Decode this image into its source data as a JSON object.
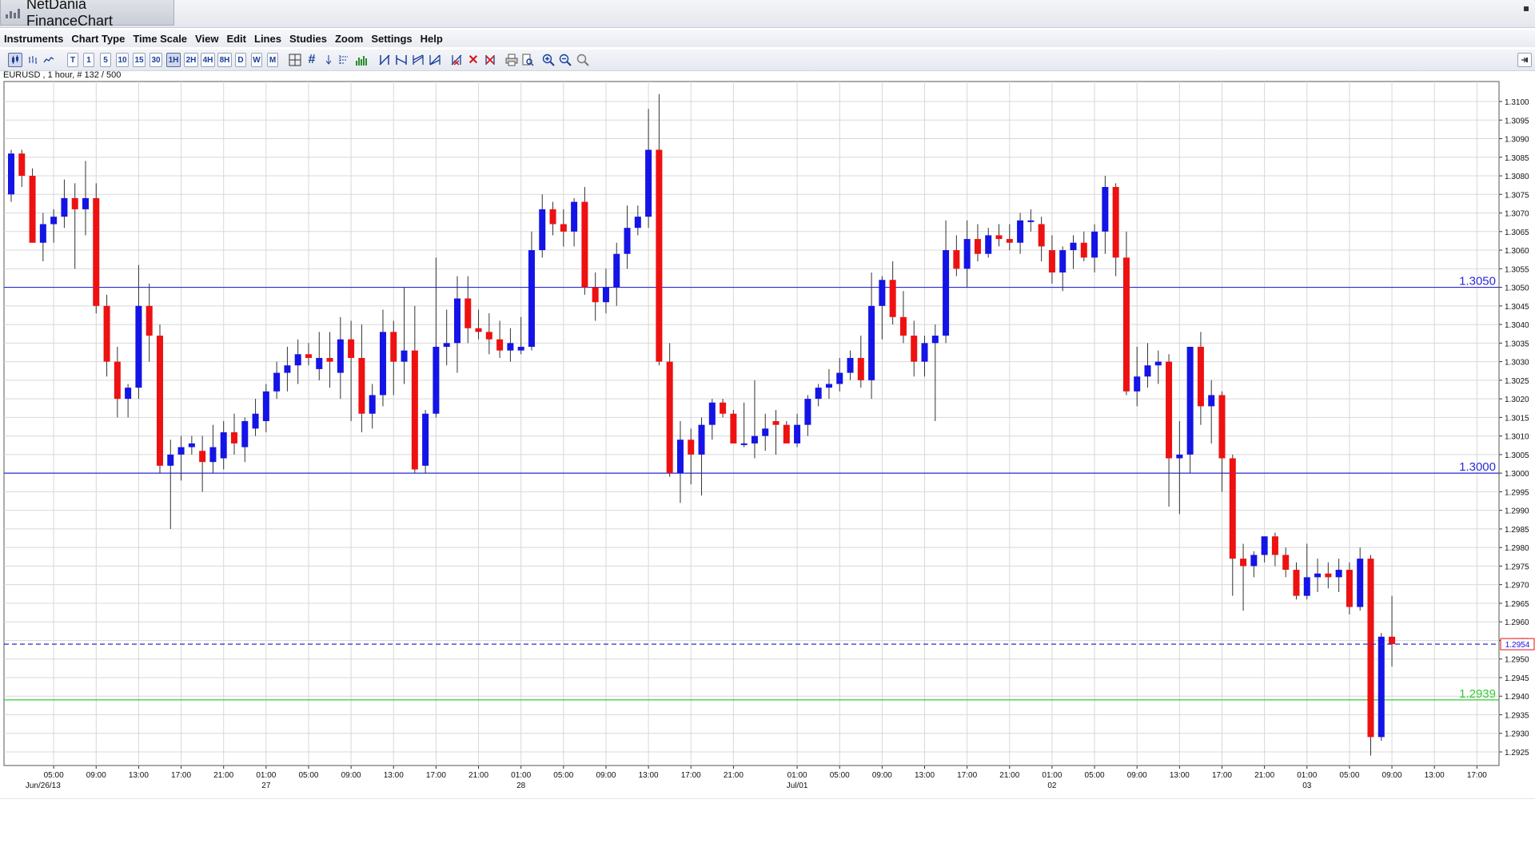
{
  "window": {
    "title": "NetDania FinanceChart"
  },
  "menu": [
    "Instruments",
    "Chart Type",
    "Time Scale",
    "View",
    "Edit",
    "Lines",
    "Studies",
    "Zoom",
    "Settings",
    "Help"
  ],
  "toolbar": {
    "timeframes": [
      "T",
      "1",
      "5",
      "10",
      "15",
      "30",
      "1H",
      "2H",
      "4H",
      "8H",
      "D",
      "W",
      "M"
    ],
    "active_timeframe": "1H",
    "icons": [
      "candlestick-chart-icon",
      "bar-chart-icon",
      "line-chart-icon",
      "crosshair-icon",
      "grid-icon",
      "arrow-down-icon",
      "fibonacci-icon",
      "volume-icon",
      "trendline-icon",
      "parallel-lines-icon",
      "channel-icon",
      "fan-icon",
      "delete-line-icon",
      "delete-icon",
      "delete-all-icon",
      "print-icon",
      "print-preview-icon",
      "zoom-in-icon",
      "zoom-out-icon",
      "zoom-reset-icon",
      "pin-icon"
    ]
  },
  "info_label": "EURUSD , 1 hour, # 132 / 500",
  "colors": {
    "up_candle": "#1414e6",
    "down_candle": "#ee1111",
    "grid": "#d8d8d8",
    "horizontal_line": "#2a2ad8",
    "support_line": "#33cc33",
    "current_price_line": "#2a2ad8",
    "current_price_box_border": "#ee1111"
  },
  "chart_data": {
    "type": "candlestick",
    "symbol": "EURUSD",
    "timeframe": "1 hour",
    "ylim": [
      1.292,
      1.3105
    ],
    "y_ticks": [
      "1.3100",
      "1.3095",
      "1.3090",
      "1.3085",
      "1.3080",
      "1.3075",
      "1.3070",
      "1.3065",
      "1.3060",
      "1.3055",
      "1.3050",
      "1.3045",
      "1.3040",
      "1.3035",
      "1.3030",
      "1.3025",
      "1.3020",
      "1.3015",
      "1.3010",
      "1.3005",
      "1.3000",
      "1.2995",
      "1.2990",
      "1.2985",
      "1.2980",
      "1.2975",
      "1.2970",
      "1.2965",
      "1.2960",
      "1.2955",
      "1.2950",
      "1.2945",
      "1.2940",
      "1.2935",
      "1.2930",
      "1.2925"
    ],
    "x_time_labels": [
      "05:00",
      "09:00",
      "13:00",
      "17:00",
      "21:00",
      "01:00",
      "05:00",
      "09:00",
      "13:00",
      "17:00",
      "21:00",
      "01:00",
      "05:00",
      "09:00",
      "13:00",
      "17:00",
      "21:00",
      "01:00",
      "05:00",
      "09:00",
      "13:00",
      "17:00",
      "21:00",
      "01:00",
      "05:00",
      "09:00",
      "13:00",
      "17:00",
      "21:00",
      "01:00",
      "05:00",
      "09:00",
      "13:00",
      "17:00"
    ],
    "x_time_bar_index": [
      4,
      8,
      12,
      16,
      20,
      24,
      28,
      32,
      36,
      40,
      44,
      48,
      52,
      56,
      60,
      64,
      68,
      74,
      78,
      82,
      86,
      90,
      94,
      98,
      102,
      106,
      110,
      114,
      118,
      122,
      126,
      130,
      134,
      138
    ],
    "x_date_labels": [
      {
        "label": "Jun/26/13",
        "bar": 3
      },
      {
        "label": "27",
        "bar": 24
      },
      {
        "label": "28",
        "bar": 48
      },
      {
        "label": "Jul/01",
        "bar": 74
      },
      {
        "label": "02",
        "bar": 98
      },
      {
        "label": "03",
        "bar": 122
      }
    ],
    "horizontal_lines": [
      {
        "value": 1.305,
        "label": "1.3050",
        "color": "#2a2ad8"
      },
      {
        "value": 1.3,
        "label": "1.3000",
        "color": "#2a2ad8"
      },
      {
        "value": 1.2939,
        "label": "1.2939",
        "color": "#33cc33"
      }
    ],
    "current_price": {
      "value": 1.2954,
      "label": "1.2954"
    },
    "candles": [
      {
        "o": 1.3075,
        "h": 1.3087,
        "l": 1.3073,
        "c": 1.3086
      },
      {
        "o": 1.3086,
        "h": 1.3087,
        "l": 1.3077,
        "c": 1.308
      },
      {
        "o": 1.308,
        "h": 1.3082,
        "l": 1.3062,
        "c": 1.3062
      },
      {
        "o": 1.3062,
        "h": 1.307,
        "l": 1.3057,
        "c": 1.3067
      },
      {
        "o": 1.3067,
        "h": 1.3071,
        "l": 1.3062,
        "c": 1.3069
      },
      {
        "o": 1.3069,
        "h": 1.3079,
        "l": 1.3066,
        "c": 1.3074
      },
      {
        "o": 1.3074,
        "h": 1.3078,
        "l": 1.3055,
        "c": 1.3071
      },
      {
        "o": 1.3071,
        "h": 1.3084,
        "l": 1.3064,
        "c": 1.3074
      },
      {
        "o": 1.3074,
        "h": 1.3078,
        "l": 1.3043,
        "c": 1.3045
      },
      {
        "o": 1.3045,
        "h": 1.3048,
        "l": 1.3026,
        "c": 1.303
      },
      {
        "o": 1.303,
        "h": 1.3034,
        "l": 1.3015,
        "c": 1.302
      },
      {
        "o": 1.302,
        "h": 1.3024,
        "l": 1.3015,
        "c": 1.3023
      },
      {
        "o": 1.3023,
        "h": 1.3056,
        "l": 1.302,
        "c": 1.3045
      },
      {
        "o": 1.3045,
        "h": 1.3051,
        "l": 1.303,
        "c": 1.3037
      },
      {
        "o": 1.3037,
        "h": 1.304,
        "l": 1.3,
        "c": 1.3002
      },
      {
        "o": 1.3002,
        "h": 1.3009,
        "l": 1.2985,
        "c": 1.3005
      },
      {
        "o": 1.3005,
        "h": 1.301,
        "l": 1.2998,
        "c": 1.3007
      },
      {
        "o": 1.3007,
        "h": 1.301,
        "l": 1.3005,
        "c": 1.3008
      },
      {
        "o": 1.3006,
        "h": 1.301,
        "l": 1.2995,
        "c": 1.3003
      },
      {
        "o": 1.3003,
        "h": 1.3013,
        "l": 1.3,
        "c": 1.3007
      },
      {
        "o": 1.3004,
        "h": 1.3014,
        "l": 1.3001,
        "c": 1.3011
      },
      {
        "o": 1.3011,
        "h": 1.3016,
        "l": 1.3005,
        "c": 1.3008
      },
      {
        "o": 1.3007,
        "h": 1.3015,
        "l": 1.3003,
        "c": 1.3014
      },
      {
        "o": 1.3012,
        "h": 1.302,
        "l": 1.301,
        "c": 1.3016
      },
      {
        "o": 1.3014,
        "h": 1.3024,
        "l": 1.3011,
        "c": 1.3022
      },
      {
        "o": 1.3022,
        "h": 1.303,
        "l": 1.302,
        "c": 1.3027
      },
      {
        "o": 1.3027,
        "h": 1.3034,
        "l": 1.3022,
        "c": 1.3029
      },
      {
        "o": 1.3029,
        "h": 1.3036,
        "l": 1.3024,
        "c": 1.3032
      },
      {
        "o": 1.3032,
        "h": 1.3035,
        "l": 1.3029,
        "c": 1.3031
      },
      {
        "o": 1.3028,
        "h": 1.3038,
        "l": 1.3025,
        "c": 1.3031
      },
      {
        "o": 1.3031,
        "h": 1.3038,
        "l": 1.3023,
        "c": 1.303
      },
      {
        "o": 1.3027,
        "h": 1.3042,
        "l": 1.302,
        "c": 1.3036
      },
      {
        "o": 1.3036,
        "h": 1.3041,
        "l": 1.3014,
        "c": 1.3031
      },
      {
        "o": 1.3031,
        "h": 1.304,
        "l": 1.3011,
        "c": 1.3016
      },
      {
        "o": 1.3016,
        "h": 1.3024,
        "l": 1.3012,
        "c": 1.3021
      },
      {
        "o": 1.3021,
        "h": 1.3044,
        "l": 1.3018,
        "c": 1.3038
      },
      {
        "o": 1.3038,
        "h": 1.3041,
        "l": 1.3021,
        "c": 1.303
      },
      {
        "o": 1.303,
        "h": 1.305,
        "l": 1.3024,
        "c": 1.3033
      },
      {
        "o": 1.3033,
        "h": 1.3045,
        "l": 1.3,
        "c": 1.3001
      },
      {
        "o": 1.3002,
        "h": 1.3017,
        "l": 1.3,
        "c": 1.3016
      },
      {
        "o": 1.3016,
        "h": 1.3058,
        "l": 1.3015,
        "c": 1.3034
      },
      {
        "o": 1.3034,
        "h": 1.3044,
        "l": 1.3029,
        "c": 1.3035
      },
      {
        "o": 1.3035,
        "h": 1.3053,
        "l": 1.3027,
        "c": 1.3047
      },
      {
        "o": 1.3047,
        "h": 1.3053,
        "l": 1.3035,
        "c": 1.3039
      },
      {
        "o": 1.3039,
        "h": 1.3044,
        "l": 1.3036,
        "c": 1.3038
      },
      {
        "o": 1.3038,
        "h": 1.3043,
        "l": 1.3032,
        "c": 1.3036
      },
      {
        "o": 1.3036,
        "h": 1.3041,
        "l": 1.3031,
        "c": 1.3033
      },
      {
        "o": 1.3033,
        "h": 1.3039,
        "l": 1.303,
        "c": 1.3035
      },
      {
        "o": 1.3033,
        "h": 1.3042,
        "l": 1.3032,
        "c": 1.3034
      },
      {
        "o": 1.3034,
        "h": 1.3065,
        "l": 1.3033,
        "c": 1.306
      },
      {
        "o": 1.306,
        "h": 1.3075,
        "l": 1.3058,
        "c": 1.3071
      },
      {
        "o": 1.3071,
        "h": 1.3073,
        "l": 1.3064,
        "c": 1.3067
      },
      {
        "o": 1.3067,
        "h": 1.3071,
        "l": 1.3061,
        "c": 1.3065
      },
      {
        "o": 1.3065,
        "h": 1.3074,
        "l": 1.3061,
        "c": 1.3073
      },
      {
        "o": 1.3073,
        "h": 1.3077,
        "l": 1.3048,
        "c": 1.305
      },
      {
        "o": 1.305,
        "h": 1.3054,
        "l": 1.3041,
        "c": 1.3046
      },
      {
        "o": 1.3046,
        "h": 1.3055,
        "l": 1.3043,
        "c": 1.305
      },
      {
        "o": 1.305,
        "h": 1.3062,
        "l": 1.3045,
        "c": 1.3059
      },
      {
        "o": 1.3059,
        "h": 1.3072,
        "l": 1.3055,
        "c": 1.3066
      },
      {
        "o": 1.3066,
        "h": 1.3072,
        "l": 1.3064,
        "c": 1.3069
      },
      {
        "o": 1.3069,
        "h": 1.3098,
        "l": 1.3066,
        "c": 1.3087
      },
      {
        "o": 1.3087,
        "h": 1.3102,
        "l": 1.3029,
        "c": 1.303
      },
      {
        "o": 1.303,
        "h": 1.3035,
        "l": 1.2999,
        "c": 1.3
      },
      {
        "o": 1.3,
        "h": 1.3014,
        "l": 1.2992,
        "c": 1.3009
      },
      {
        "o": 1.3009,
        "h": 1.3012,
        "l": 1.2997,
        "c": 1.3005
      },
      {
        "o": 1.3005,
        "h": 1.3015,
        "l": 1.2994,
        "c": 1.3013
      },
      {
        "o": 1.3013,
        "h": 1.302,
        "l": 1.3009,
        "c": 1.3019
      },
      {
        "o": 1.3019,
        "h": 1.302,
        "l": 1.3015,
        "c": 1.3016
      },
      {
        "o": 1.3016,
        "h": 1.3017,
        "l": 1.3008,
        "c": 1.3008
      },
      {
        "o": 1.3008,
        "h": 1.3019,
        "l": 1.3007,
        "c": 1.3008
      },
      {
        "o": 1.3008,
        "h": 1.3025,
        "l": 1.3004,
        "c": 1.301
      },
      {
        "o": 1.301,
        "h": 1.3016,
        "l": 1.3006,
        "c": 1.3012
      },
      {
        "o": 1.3014,
        "h": 1.3017,
        "l": 1.3005,
        "c": 1.3013
      },
      {
        "o": 1.3013,
        "h": 1.3014,
        "l": 1.3009,
        "c": 1.3008
      },
      {
        "o": 1.3008,
        "h": 1.3016,
        "l": 1.3007,
        "c": 1.3013
      },
      {
        "o": 1.3013,
        "h": 1.3021,
        "l": 1.301,
        "c": 1.302
      },
      {
        "o": 1.302,
        "h": 1.3024,
        "l": 1.3018,
        "c": 1.3023
      },
      {
        "o": 1.3023,
        "h": 1.3028,
        "l": 1.302,
        "c": 1.3024
      },
      {
        "o": 1.3024,
        "h": 1.3031,
        "l": 1.3022,
        "c": 1.3027
      },
      {
        "o": 1.3027,
        "h": 1.3033,
        "l": 1.3025,
        "c": 1.3031
      },
      {
        "o": 1.3031,
        "h": 1.3037,
        "l": 1.3023,
        "c": 1.3025
      },
      {
        "o": 1.3025,
        "h": 1.3054,
        "l": 1.302,
        "c": 1.3045
      },
      {
        "o": 1.3045,
        "h": 1.3053,
        "l": 1.3036,
        "c": 1.3052
      },
      {
        "o": 1.3052,
        "h": 1.3057,
        "l": 1.304,
        "c": 1.3042
      },
      {
        "o": 1.3042,
        "h": 1.3049,
        "l": 1.3035,
        "c": 1.3037
      },
      {
        "o": 1.3037,
        "h": 1.3041,
        "l": 1.3026,
        "c": 1.303
      },
      {
        "o": 1.303,
        "h": 1.3037,
        "l": 1.3026,
        "c": 1.3035
      },
      {
        "o": 1.3035,
        "h": 1.304,
        "l": 1.3014,
        "c": 1.3037
      },
      {
        "o": 1.3037,
        "h": 1.3068,
        "l": 1.3035,
        "c": 1.306
      },
      {
        "o": 1.306,
        "h": 1.3064,
        "l": 1.3053,
        "c": 1.3055
      },
      {
        "o": 1.3055,
        "h": 1.3068,
        "l": 1.305,
        "c": 1.3063
      },
      {
        "o": 1.3063,
        "h": 1.3067,
        "l": 1.3057,
        "c": 1.3059
      },
      {
        "o": 1.3059,
        "h": 1.3066,
        "l": 1.3058,
        "c": 1.3064
      },
      {
        "o": 1.3064,
        "h": 1.3067,
        "l": 1.3061,
        "c": 1.3063
      },
      {
        "o": 1.3063,
        "h": 1.3067,
        "l": 1.306,
        "c": 1.3062
      },
      {
        "o": 1.3062,
        "h": 1.307,
        "l": 1.3059,
        "c": 1.3068
      },
      {
        "o": 1.3068,
        "h": 1.3071,
        "l": 1.3065,
        "c": 1.3068
      },
      {
        "o": 1.3067,
        "h": 1.3069,
        "l": 1.3057,
        "c": 1.3061
      },
      {
        "o": 1.306,
        "h": 1.3064,
        "l": 1.3051,
        "c": 1.3054
      },
      {
        "o": 1.3054,
        "h": 1.3061,
        "l": 1.3049,
        "c": 1.306
      },
      {
        "o": 1.306,
        "h": 1.3064,
        "l": 1.3055,
        "c": 1.3062
      },
      {
        "o": 1.3062,
        "h": 1.3065,
        "l": 1.3057,
        "c": 1.3058
      },
      {
        "o": 1.3058,
        "h": 1.3067,
        "l": 1.3054,
        "c": 1.3065
      },
      {
        "o": 1.3065,
        "h": 1.308,
        "l": 1.3059,
        "c": 1.3077
      },
      {
        "o": 1.3077,
        "h": 1.3078,
        "l": 1.3053,
        "c": 1.3058
      },
      {
        "o": 1.3058,
        "h": 1.3065,
        "l": 1.3021,
        "c": 1.3022
      },
      {
        "o": 1.3022,
        "h": 1.3034,
        "l": 1.3018,
        "c": 1.3026
      },
      {
        "o": 1.3026,
        "h": 1.3035,
        "l": 1.3023,
        "c": 1.3029
      },
      {
        "o": 1.3029,
        "h": 1.3033,
        "l": 1.3024,
        "c": 1.303
      },
      {
        "o": 1.303,
        "h": 1.3032,
        "l": 1.2991,
        "c": 1.3004
      },
      {
        "o": 1.3004,
        "h": 1.3014,
        "l": 1.2989,
        "c": 1.3005
      },
      {
        "o": 1.3005,
        "h": 1.3034,
        "l": 1.3,
        "c": 1.3034
      },
      {
        "o": 1.3034,
        "h": 1.3038,
        "l": 1.3013,
        "c": 1.3018
      },
      {
        "o": 1.3018,
        "h": 1.3025,
        "l": 1.3008,
        "c": 1.3021
      },
      {
        "o": 1.3021,
        "h": 1.3022,
        "l": 1.2995,
        "c": 1.3004
      },
      {
        "o": 1.3004,
        "h": 1.3005,
        "l": 1.2967,
        "c": 1.2977
      },
      {
        "o": 1.2977,
        "h": 1.2981,
        "l": 1.2963,
        "c": 1.2975
      },
      {
        "o": 1.2975,
        "h": 1.2979,
        "l": 1.2972,
        "c": 1.2978
      },
      {
        "o": 1.2978,
        "h": 1.2983,
        "l": 1.2976,
        "c": 1.2983
      },
      {
        "o": 1.2983,
        "h": 1.2984,
        "l": 1.2975,
        "c": 1.2978
      },
      {
        "o": 1.2978,
        "h": 1.298,
        "l": 1.2972,
        "c": 1.2974
      },
      {
        "o": 1.2974,
        "h": 1.2976,
        "l": 1.2966,
        "c": 1.2967
      },
      {
        "o": 1.2967,
        "h": 1.2981,
        "l": 1.2966,
        "c": 1.2972
      },
      {
        "o": 1.2972,
        "h": 1.2977,
        "l": 1.2968,
        "c": 1.2973
      },
      {
        "o": 1.2973,
        "h": 1.2976,
        "l": 1.2969,
        "c": 1.2972
      },
      {
        "o": 1.2972,
        "h": 1.2977,
        "l": 1.2968,
        "c": 1.2974
      },
      {
        "o": 1.2974,
        "h": 1.2976,
        "l": 1.2962,
        "c": 1.2964
      },
      {
        "o": 1.2964,
        "h": 1.298,
        "l": 1.2963,
        "c": 1.2977
      },
      {
        "o": 1.2977,
        "h": 1.2978,
        "l": 1.2924,
        "c": 1.2929
      },
      {
        "o": 1.2929,
        "h": 1.2957,
        "l": 1.2928,
        "c": 1.2956
      },
      {
        "o": 1.2956,
        "h": 1.2967,
        "l": 1.2948,
        "c": 1.2954
      }
    ]
  }
}
